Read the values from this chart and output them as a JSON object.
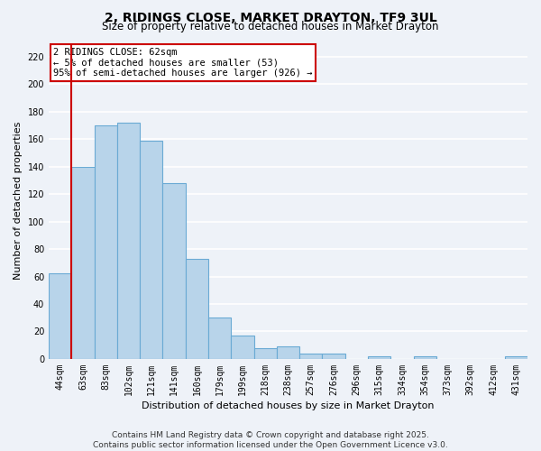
{
  "title": "2, RIDINGS CLOSE, MARKET DRAYTON, TF9 3UL",
  "subtitle": "Size of property relative to detached houses in Market Drayton",
  "xlabel": "Distribution of detached houses by size in Market Drayton",
  "ylabel": "Number of detached properties",
  "bar_labels": [
    "44sqm",
    "63sqm",
    "83sqm",
    "102sqm",
    "121sqm",
    "141sqm",
    "160sqm",
    "179sqm",
    "199sqm",
    "218sqm",
    "238sqm",
    "257sqm",
    "276sqm",
    "296sqm",
    "315sqm",
    "334sqm",
    "354sqm",
    "373sqm",
    "392sqm",
    "412sqm",
    "431sqm"
  ],
  "bar_values": [
    62,
    140,
    170,
    172,
    159,
    128,
    73,
    30,
    17,
    8,
    9,
    4,
    4,
    0,
    2,
    0,
    2,
    0,
    0,
    0,
    2
  ],
  "bar_color": "#b8d4ea",
  "bar_edge_color": "#6aaad4",
  "highlight_color": "#cc0000",
  "ylim": [
    0,
    230
  ],
  "yticks": [
    0,
    20,
    40,
    60,
    80,
    100,
    120,
    140,
    160,
    180,
    200,
    220
  ],
  "annotation_line1": "2 RIDINGS CLOSE: 62sqm",
  "annotation_line2": "← 5% of detached houses are smaller (53)",
  "annotation_line3": "95% of semi-detached houses are larger (926) →",
  "footer_line1": "Contains HM Land Registry data © Crown copyright and database right 2025.",
  "footer_line2": "Contains public sector information licensed under the Open Government Licence v3.0.",
  "background_color": "#eef2f8",
  "grid_color": "#ffffff",
  "title_fontsize": 10,
  "subtitle_fontsize": 8.5,
  "axis_label_fontsize": 8,
  "tick_fontsize": 7,
  "annotation_fontsize": 7.5,
  "footer_fontsize": 6.5
}
